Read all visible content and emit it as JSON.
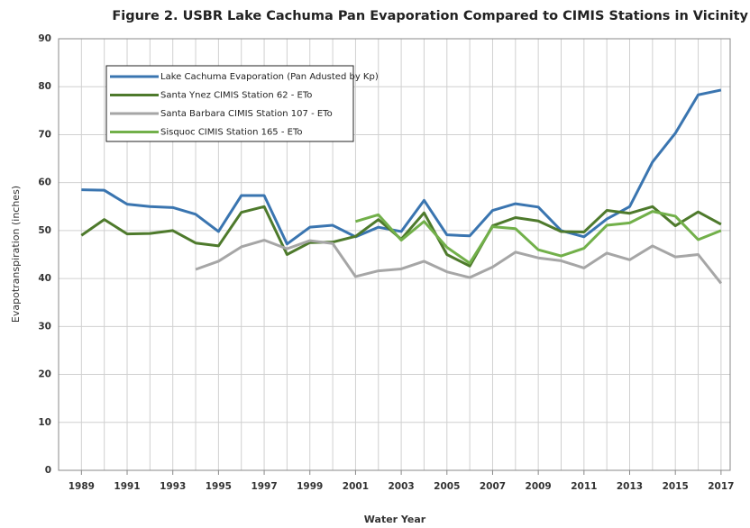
{
  "chart_data": {
    "type": "line",
    "title": "Figure 2. USBR Lake Cachuma Pan Evaporation Compared to CIMIS Stations in Vicinity",
    "x_label": "Water Year",
    "y_label": "Evapotranspiration (inches)",
    "x": [
      1989,
      1990,
      1991,
      1992,
      1993,
      1994,
      1995,
      1996,
      1997,
      1998,
      1999,
      2000,
      2001,
      2002,
      2003,
      2004,
      2005,
      2006,
      2007,
      2008,
      2009,
      2010,
      2011,
      2012,
      2013,
      2014,
      2015,
      2016,
      2017
    ],
    "series": [
      {
        "name": "Lake Cachuma Evaporation (Pan Adusted by Kp)",
        "color": "#3a75b0",
        "values": [
          58.5,
          58.4,
          55.5,
          55.0,
          54.8,
          53.4,
          49.8,
          57.3,
          57.3,
          47.2,
          50.7,
          51.1,
          48.7,
          50.7,
          49.8,
          56.3,
          49.1,
          48.9,
          54.2,
          55.6,
          54.9,
          50.0,
          48.7,
          52.4,
          55.0,
          64.3,
          70.3,
          78.3,
          79.3
        ]
      },
      {
        "name": "Santa Ynez CIMIS Station 62 - ETo",
        "color": "#4e7a2c",
        "values": [
          49.0,
          52.3,
          49.3,
          49.4,
          50.0,
          47.4,
          46.8,
          53.8,
          55.0,
          45.0,
          47.5,
          47.6,
          48.8,
          52.3,
          48.2,
          53.7,
          45.0,
          42.6,
          51.0,
          52.7,
          52.0,
          49.8,
          49.7,
          54.2,
          53.6,
          55.0,
          51.0,
          53.9,
          51.3
        ]
      },
      {
        "name": "Santa Barbara CIMIS Station 107 - ETo",
        "color": "#a6a6a6",
        "values": [
          null,
          null,
          null,
          null,
          null,
          41.9,
          43.6,
          46.6,
          48.0,
          46.2,
          47.9,
          47.3,
          40.4,
          41.6,
          42.0,
          43.6,
          41.4,
          40.2,
          42.4,
          45.5,
          44.3,
          43.7,
          42.2,
          45.3,
          43.9,
          46.8,
          44.5,
          45.0,
          39.0
        ]
      },
      {
        "name": "Sisquoc CIMIS Station 165 - ETo",
        "color": "#72b04a",
        "values": [
          null,
          null,
          null,
          null,
          null,
          null,
          null,
          null,
          null,
          null,
          null,
          null,
          51.9,
          53.3,
          48.0,
          51.9,
          46.5,
          43.2,
          50.8,
          50.4,
          46.0,
          44.7,
          46.3,
          51.1,
          51.6,
          54.0,
          53.0,
          48.1,
          50.0
        ]
      }
    ],
    "xlim": [
      1988,
      2017.4
    ],
    "xticks": [
      1989,
      1991,
      1993,
      1995,
      1997,
      1999,
      2001,
      2003,
      2005,
      2007,
      2009,
      2011,
      2013,
      2015,
      2017
    ],
    "ylim": [
      0,
      90
    ],
    "yticks": [
      0,
      10,
      20,
      30,
      40,
      50,
      60,
      70,
      80,
      90
    ],
    "grid": true,
    "legend": "upper left"
  }
}
